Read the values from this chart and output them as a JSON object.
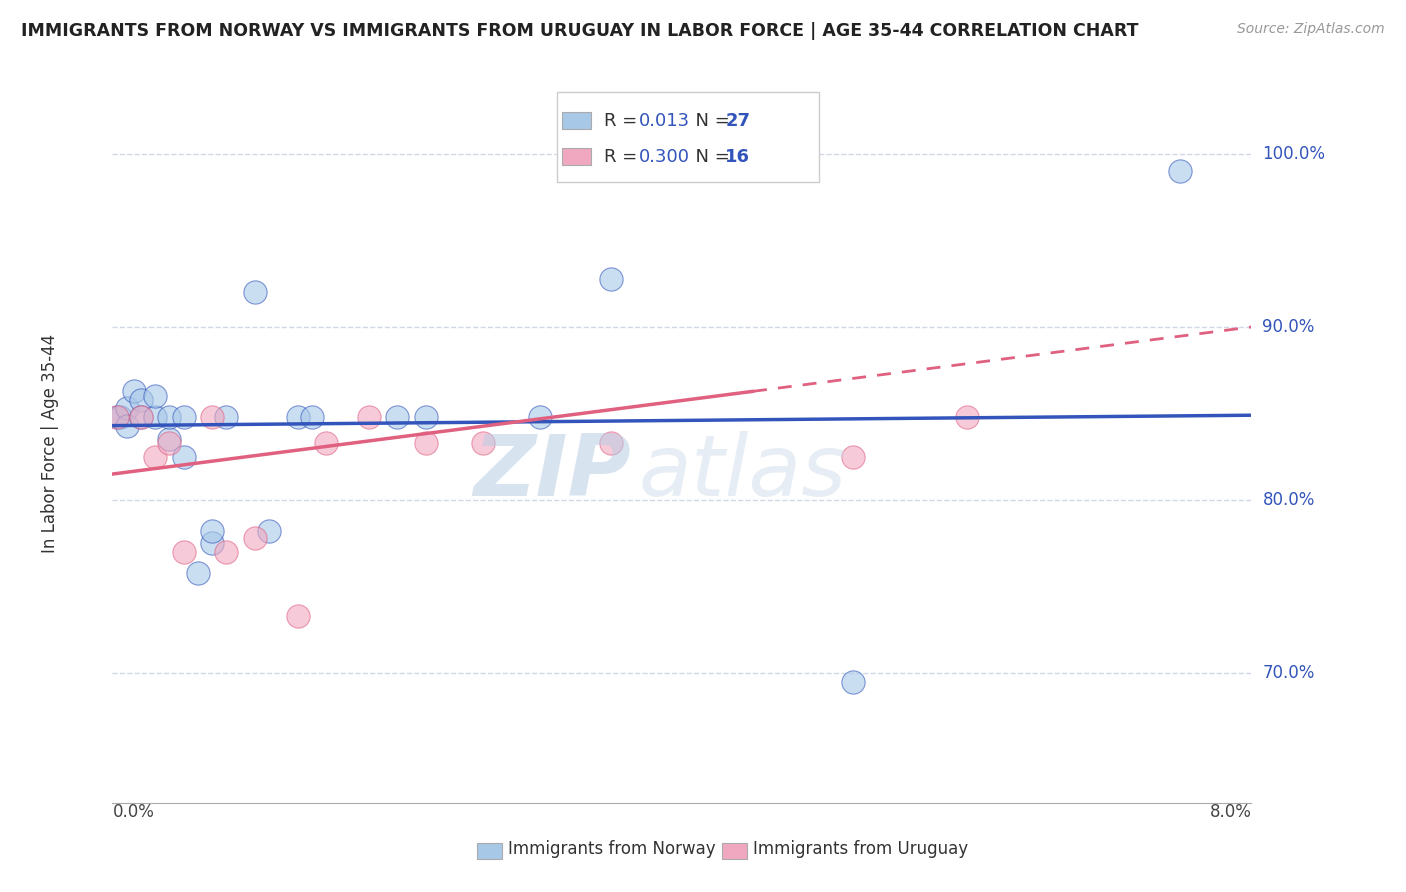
{
  "title": "IMMIGRANTS FROM NORWAY VS IMMIGRANTS FROM URUGUAY IN LABOR FORCE | AGE 35-44 CORRELATION CHART",
  "source": "Source: ZipAtlas.com",
  "ylabel": "In Labor Force | Age 35-44",
  "ytick_labels": [
    "70.0%",
    "80.0%",
    "90.0%",
    "100.0%"
  ],
  "ytick_values": [
    0.7,
    0.8,
    0.9,
    1.0
  ],
  "xlim": [
    0.0,
    0.08
  ],
  "ylim": [
    0.625,
    1.04
  ],
  "legend_r_norway": "0.013",
  "legend_n_norway": "27",
  "legend_r_uruguay": "0.300",
  "legend_n_uruguay": "16",
  "norway_color": "#a8c8e8",
  "uruguay_color": "#f0a8c0",
  "norway_line_color": "#3355bb",
  "uruguay_line_color": "#e06080",
  "norway_scatter_x": [
    0.0003,
    0.0005,
    0.001,
    0.001,
    0.0015,
    0.002,
    0.002,
    0.003,
    0.003,
    0.004,
    0.004,
    0.005,
    0.005,
    0.006,
    0.007,
    0.007,
    0.008,
    0.01,
    0.011,
    0.013,
    0.014,
    0.02,
    0.022,
    0.03,
    0.035,
    0.052,
    0.075
  ],
  "norway_scatter_y": [
    0.848,
    0.848,
    0.853,
    0.843,
    0.863,
    0.858,
    0.848,
    0.848,
    0.86,
    0.835,
    0.848,
    0.825,
    0.848,
    0.758,
    0.775,
    0.782,
    0.848,
    0.92,
    0.782,
    0.848,
    0.848,
    0.848,
    0.848,
    0.848,
    0.928,
    0.695,
    0.99
  ],
  "uruguay_scatter_x": [
    0.0003,
    0.002,
    0.003,
    0.004,
    0.005,
    0.007,
    0.008,
    0.01,
    0.013,
    0.015,
    0.018,
    0.022,
    0.026,
    0.035,
    0.052,
    0.06
  ],
  "uruguay_scatter_y": [
    0.848,
    0.848,
    0.825,
    0.833,
    0.77,
    0.848,
    0.77,
    0.778,
    0.733,
    0.833,
    0.848,
    0.833,
    0.833,
    0.833,
    0.825,
    0.848
  ],
  "norway_trend_x": [
    0.0,
    0.08
  ],
  "norway_trend_y": [
    0.843,
    0.849
  ],
  "uruguay_trend_x": [
    0.0,
    0.08
  ],
  "uruguay_trend_y": [
    0.815,
    0.9
  ],
  "watermark_zip": "ZIP",
  "watermark_atlas": "atlas",
  "grid_color": "#d0d8e8",
  "background_color": "#ffffff"
}
